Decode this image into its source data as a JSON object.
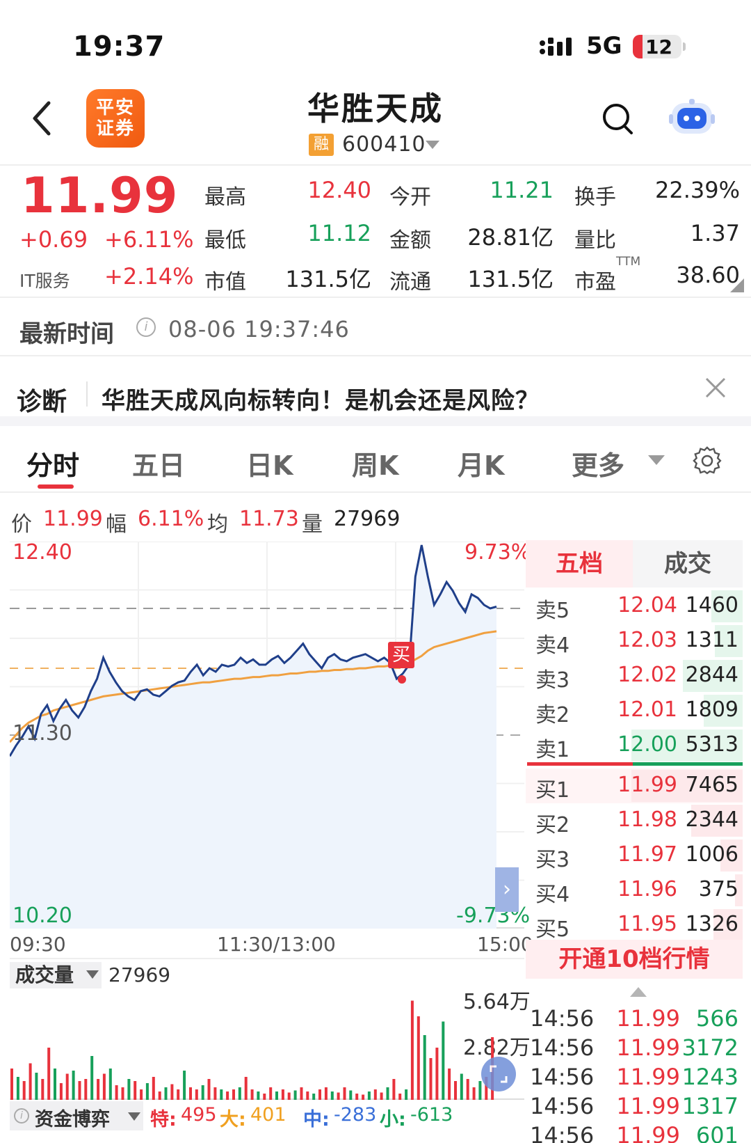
{
  "status_bar": {
    "time": "19:37",
    "network": "5G",
    "battery": "12"
  },
  "header": {
    "broker_logo": "平安证券",
    "title": "华胜天成",
    "badge": "融",
    "code": "600410"
  },
  "quote": {
    "price": "11.99",
    "change": "+0.69",
    "change_pct": "+6.11%",
    "sector_name": "IT服务",
    "sector_pct": "+2.14%",
    "fields": [
      {
        "label": "最高",
        "value": "12.40",
        "color": "#e8323c"
      },
      {
        "label": "今开",
        "value": "11.21",
        "color": "#17a05a"
      },
      {
        "label": "换手",
        "value": "22.39%",
        "color": "#222222"
      },
      {
        "label": "最低",
        "value": "11.12",
        "color": "#17a05a"
      },
      {
        "label": "金额",
        "value": "28.81亿",
        "color": "#222222"
      },
      {
        "label": "量比",
        "value": "1.37",
        "color": "#222222"
      },
      {
        "label": "市值",
        "value": "131.5亿",
        "color": "#222222"
      },
      {
        "label": "流通",
        "value": "131.5亿",
        "color": "#222222"
      },
      {
        "label": "市盈",
        "value": "38.60",
        "color": "#222222"
      }
    ],
    "pe_sup": "TTM"
  },
  "latest_time": {
    "label": "最新时间",
    "value": "08-06 19:37:46"
  },
  "diagnosis": {
    "label": "诊断",
    "text": "华胜天成风向标转向！是机会还是风险？"
  },
  "tabs": [
    "分时",
    "五日",
    "日K",
    "周K",
    "月K",
    "更多"
  ],
  "info_bar": {
    "price_label": "价",
    "price": "11.99",
    "range_label": "幅",
    "range": "6.11%",
    "avg_label": "均",
    "avg": "11.73",
    "vol_label": "量",
    "vol": "27969"
  },
  "chart_data": {
    "type": "line",
    "y_top_label": "12.40",
    "y_mid_label": "11.30",
    "y_bottom_label": "10.20",
    "pct_top_label": "9.73%",
    "pct_bottom_label": "-9.73%",
    "x_labels": [
      "09:30",
      "11:30/13:00",
      "15:00"
    ],
    "ylim": [
      10.2,
      12.4
    ],
    "prev_close": 11.3,
    "buy_marker": "买",
    "series": [
      {
        "values": [
          11.18,
          11.24,
          11.29,
          11.35,
          11.28,
          11.42,
          11.47,
          11.38,
          11.45,
          11.5,
          11.44,
          11.4,
          11.46,
          11.55,
          11.62,
          11.74,
          11.66,
          11.6,
          11.55,
          11.52,
          11.5,
          11.55,
          11.56,
          11.53,
          11.52,
          11.55,
          11.58,
          11.6,
          11.61,
          11.66,
          11.7,
          11.64,
          11.68,
          11.66,
          11.7,
          11.69,
          11.7,
          11.74,
          11.71,
          11.73,
          11.7,
          11.7,
          11.73,
          11.75,
          11.71,
          11.74,
          11.78,
          11.82,
          11.76,
          11.72,
          11.68,
          11.74,
          11.76,
          11.73,
          11.72,
          11.74,
          11.75,
          11.76,
          11.74,
          11.72,
          11.74,
          11.71,
          11.62,
          11.65,
          11.7,
          12.2,
          12.38,
          12.2,
          12.04,
          12.1,
          12.17,
          12.12,
          12.05,
          12.0,
          12.1,
          12.08,
          12.04,
          12.02,
          12.03
        ]
      },
      {
        "values": [
          11.26,
          11.3,
          11.34,
          11.37,
          11.39,
          11.41,
          11.42,
          11.44,
          11.45,
          11.46,
          11.47,
          11.48,
          11.49,
          11.5,
          11.51,
          11.52,
          11.525,
          11.53,
          11.535,
          11.54,
          11.545,
          11.55,
          11.555,
          11.56,
          11.565,
          11.57,
          11.575,
          11.58,
          11.585,
          11.59,
          11.595,
          11.6,
          11.6,
          11.605,
          11.61,
          11.615,
          11.62,
          11.62,
          11.625,
          11.63,
          11.63,
          11.635,
          11.64,
          11.64,
          11.645,
          11.65,
          11.65,
          11.655,
          11.66,
          11.66,
          11.665,
          11.665,
          11.67,
          11.67,
          11.675,
          11.675,
          11.68,
          11.68,
          11.685,
          11.69,
          11.69,
          11.695,
          11.7,
          11.705,
          11.71,
          11.73,
          11.75,
          11.78,
          11.8,
          11.81,
          11.82,
          11.83,
          11.84,
          11.85,
          11.86,
          11.87,
          11.88,
          11.885,
          11.89
        ]
      }
    ]
  },
  "order_book": {
    "tab_level": "五档",
    "tab_trades": "成交",
    "asks": [
      {
        "label": "卖5",
        "price": "12.04",
        "vol": "1460",
        "ratio": 0.28
      },
      {
        "label": "卖4",
        "price": "12.03",
        "vol": "1311",
        "ratio": 0.25
      },
      {
        "label": "卖3",
        "price": "12.02",
        "vol": "2844",
        "ratio": 0.54
      },
      {
        "label": "卖2",
        "price": "12.01",
        "vol": "1809",
        "ratio": 0.35
      },
      {
        "label": "卖1",
        "price": "12.00",
        "vol": "5313",
        "ratio": 1.0
      }
    ],
    "bids": [
      {
        "label": "买1",
        "price": "11.99",
        "vol": "7465",
        "ratio": 1.0
      },
      {
        "label": "买2",
        "price": "11.98",
        "vol": "2344",
        "ratio": 0.46
      },
      {
        "label": "买3",
        "price": "11.97",
        "vol": "1006",
        "ratio": 0.2
      },
      {
        "label": "买4",
        "price": "11.96",
        "vol": "375",
        "ratio": 0.07
      },
      {
        "label": "买5",
        "price": "11.95",
        "vol": "1326",
        "ratio": 0.26
      }
    ],
    "open10": "开通10档行情"
  },
  "ticks": [
    {
      "time": "14:56",
      "price": "11.99",
      "vol": "566"
    },
    {
      "time": "14:56",
      "price": "11.99",
      "vol": "3172"
    },
    {
      "time": "14:56",
      "price": "11.99",
      "vol": "1243"
    },
    {
      "time": "14:56",
      "price": "11.99",
      "vol": "1317"
    },
    {
      "time": "14:56",
      "price": "11.99",
      "vol": "601"
    }
  ],
  "volume": {
    "label": "成交量",
    "value": "27969",
    "max_label": "5.64万",
    "mid_label": "2.82万",
    "bars": [
      0.3,
      0.22,
      0.18,
      0.35,
      0.26,
      0.2,
      0.5,
      0.3,
      0.16,
      0.25,
      0.28,
      0.18,
      0.2,
      0.42,
      0.2,
      0.25,
      0.3,
      0.14,
      0.12,
      0.2,
      0.18,
      0.1,
      0.16,
      0.22,
      0.08,
      0.12,
      0.15,
      0.1,
      0.28,
      0.12,
      0.1,
      0.14,
      0.2,
      0.12,
      0.1,
      0.08,
      0.1,
      0.12,
      0.22,
      0.1,
      0.08,
      0.06,
      0.12,
      0.08,
      0.1,
      0.07,
      0.09,
      0.12,
      0.08,
      0.06,
      0.1,
      0.12,
      0.08,
      0.07,
      0.12,
      0.09,
      0.06,
      0.05,
      0.08,
      0.1,
      0.07,
      0.12,
      0.2,
      0.06,
      0.1,
      0.95,
      0.8,
      0.62,
      0.4,
      0.5,
      0.75,
      0.3,
      0.18,
      0.25,
      0.2,
      0.12,
      0.18,
      0.22,
      0.6
    ]
  },
  "fund_game": {
    "label": "资金博弈",
    "items": [
      {
        "label": "特:",
        "value": "495",
        "color": "#e8323c"
      },
      {
        "label": "大:",
        "value": "401",
        "color": "#f0a020"
      },
      {
        "label": "中:",
        "value": "-283",
        "color": "#3a6fd8"
      },
      {
        "label": "小:",
        "value": "-613",
        "color": "#17a05a"
      }
    ]
  }
}
